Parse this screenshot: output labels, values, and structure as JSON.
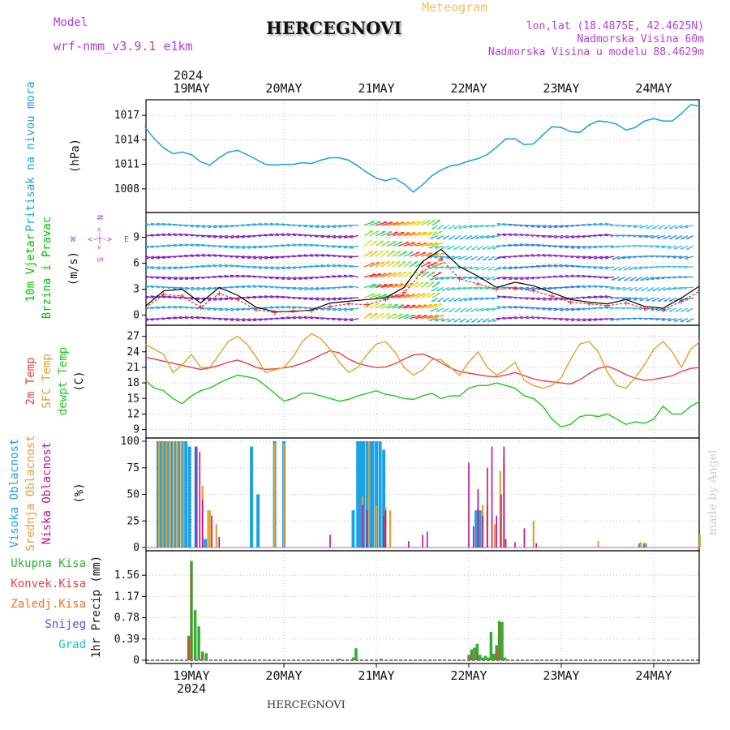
{
  "header": {
    "model_label": "Model",
    "model_name": "wrf-nmm_v3.9.1 e1km",
    "station": "HERCEGNOVI",
    "product": "Meteogram",
    "lonlat": "lon,lat (18.4875E, 42.4625N)",
    "altitude": "Nadmorska Visina 60m",
    "model_altitude": "Nadmorska Visina u modelu 88.4629m",
    "footer_station": "HERCEGNOVI",
    "watermark": "made by Angel"
  },
  "axis": {
    "year": "2024",
    "days": [
      "19MAY",
      "20MAY",
      "21MAY",
      "22MAY",
      "23MAY",
      "24MAY"
    ]
  },
  "colors": {
    "pressure": "#1ca0e6",
    "wind_label": "#00c000",
    "compass": "#b040d0",
    "temp2m": "#e84040",
    "sfc_temp": "#e0a030",
    "dewpoint": "#20c820",
    "cloud_high": "#1ca0e6",
    "cloud_mid": "#e0a030",
    "cloud_low": "#c0108c",
    "precip_total": "#30b030",
    "precip_conv": "#e04040",
    "precip_frozen": "#f07020",
    "snow": "#5050e0",
    "grad": "#20c0c0"
  },
  "chart_data": [
    {
      "type": "line",
      "panel": "pressure",
      "ylabel_main": "Pritisak na nivou mora",
      "unit": "(hPa)",
      "ylim": [
        1005.5,
        1018.5
      ],
      "yticks": [
        1008,
        1011,
        1014,
        1017
      ],
      "grid": true,
      "x_days": [
        -0.5,
        -0.4,
        -0.3,
        -0.2,
        -0.1,
        0.0,
        0.1,
        0.2,
        0.3,
        0.4,
        0.5,
        0.6,
        0.7,
        0.8,
        0.9,
        1.0,
        1.1,
        1.2,
        1.3,
        1.4,
        1.5,
        1.6,
        1.7,
        1.8,
        1.9,
        2.0,
        2.1,
        2.2,
        2.3,
        2.4,
        2.5,
        2.6,
        2.7,
        2.8,
        2.9,
        3.0,
        3.1,
        3.2,
        3.3,
        3.4,
        3.5,
        3.6,
        3.7,
        3.8,
        3.9,
        4.0,
        4.1,
        4.2,
        4.3,
        4.4,
        4.5,
        4.6,
        4.7,
        4.8,
        4.9,
        5.0,
        5.1,
        5.2,
        5.3,
        5.4,
        5.5
      ],
      "series": [
        {
          "values": [
            1015.5,
            1014.1,
            1013.0,
            1012.3,
            1012.5,
            1012.2,
            1011.3,
            1010.9,
            1011.8,
            1012.5,
            1012.7,
            1012.2,
            1011.6,
            1011.0,
            1010.9,
            1011.0,
            1011.0,
            1011.2,
            1011.1,
            1011.5,
            1011.8,
            1011.8,
            1011.5,
            1010.8,
            1010.0,
            1009.3,
            1009.0,
            1009.3,
            1008.6,
            1007.6,
            1008.5,
            1009.6,
            1010.3,
            1010.8,
            1011.0,
            1011.4,
            1011.7,
            1012.2,
            1013.1,
            1014.1,
            1014.1,
            1013.4,
            1013.5,
            1014.6,
            1015.6,
            1015.5,
            1015.0,
            1014.9,
            1015.8,
            1016.3,
            1016.2,
            1015.9,
            1015.2,
            1015.5,
            1016.3,
            1016.6,
            1016.3,
            1016.3,
            1017.2,
            1018.3,
            1018.1
          ]
        }
      ]
    },
    {
      "type": "line",
      "panel": "wind",
      "ylabel_main": "10m Vjetar",
      "ylabel_sub": "Brzina i Pravac",
      "unit": "(m/s)",
      "ylim": [
        -0.8,
        11.5
      ],
      "yticks": [
        0,
        3,
        6,
        9
      ],
      "grid": true,
      "compass": {
        "n": "N",
        "s": "S",
        "w": "W",
        "e": "E",
        "arrow": "<-|->"
      },
      "x_days": [
        -0.5,
        -0.3,
        -0.1,
        0.1,
        0.3,
        0.5,
        0.7,
        0.9,
        1.1,
        1.3,
        1.5,
        1.7,
        1.9,
        2.1,
        2.3,
        2.5,
        2.7,
        2.9,
        3.1,
        3.3,
        3.5,
        3.7,
        3.9,
        4.1,
        4.3,
        4.5,
        4.7,
        4.9,
        5.1,
        5.3,
        5.5
      ],
      "series": [
        {
          "name": "speed",
          "values": [
            1.0,
            2.8,
            3.0,
            1.4,
            3.2,
            2.3,
            0.9,
            0.4,
            0.4,
            0.6,
            1.4,
            1.6,
            1.8,
            2.0,
            3.2,
            6.2,
            7.6,
            5.6,
            4.5,
            3.2,
            3.8,
            3.4,
            2.6,
            1.8,
            1.5,
            1.3,
            1.8,
            1.0,
            0.8,
            2.0,
            3.4
          ]
        },
        {
          "name": "gust",
          "values": [
            0.8,
            2.4,
            2.2,
            0.9,
            2.5,
            1.8,
            0.6,
            0.3,
            0.5,
            0.5,
            1.0,
            1.3,
            1.2,
            1.8,
            2.6,
            5.0,
            6.5,
            4.2,
            3.6,
            3.0,
            3.1,
            2.8,
            2.2,
            1.5,
            1.3,
            1.1,
            1.4,
            0.8,
            0.6,
            1.6,
            2.8
          ]
        }
      ]
    },
    {
      "type": "line",
      "panel": "temperature",
      "ylabel_lines": [
        "2m Temp",
        "SFC Temp",
        "dewpt Temp"
      ],
      "unit": "(C)",
      "ylim": [
        8,
        28.5
      ],
      "yticks": [
        9,
        12,
        15,
        18,
        21,
        24,
        27
      ],
      "grid": true,
      "x_days": [
        -0.5,
        -0.4,
        -0.3,
        -0.2,
        -0.1,
        0.0,
        0.1,
        0.2,
        0.3,
        0.4,
        0.5,
        0.6,
        0.7,
        0.8,
        0.9,
        1.0,
        1.1,
        1.2,
        1.3,
        1.4,
        1.5,
        1.6,
        1.7,
        1.8,
        1.9,
        2.0,
        2.1,
        2.2,
        2.3,
        2.4,
        2.5,
        2.6,
        2.7,
        2.8,
        2.9,
        3.0,
        3.1,
        3.2,
        3.3,
        3.4,
        3.5,
        3.6,
        3.7,
        3.8,
        3.9,
        4.0,
        4.1,
        4.2,
        4.3,
        4.4,
        4.5,
        4.6,
        4.7,
        4.8,
        4.9,
        5.0,
        5.1,
        5.2,
        5.3,
        5.4,
        5.5
      ],
      "series": [
        {
          "name": "2m Temp",
          "values": [
            23.0,
            22.6,
            22.2,
            21.8,
            21.4,
            21.0,
            20.6,
            20.9,
            21.4,
            22.0,
            22.4,
            21.8,
            21.0,
            20.6,
            20.7,
            20.9,
            21.2,
            21.8,
            22.5,
            23.4,
            24.2,
            23.8,
            22.6,
            21.8,
            21.3,
            21.0,
            21.1,
            21.7,
            22.6,
            23.4,
            23.6,
            22.9,
            21.9,
            20.9,
            20.2,
            19.9,
            19.6,
            19.3,
            19.2,
            19.5,
            20.0,
            19.4,
            18.8,
            18.4,
            18.2,
            18.0,
            17.8,
            18.6,
            19.8,
            20.8,
            21.2,
            20.5,
            19.6,
            18.9,
            18.5,
            18.7,
            19.0,
            19.4,
            20.2,
            20.8,
            21.0
          ]
        },
        {
          "name": "SFC Temp",
          "values": [
            25.5,
            24.5,
            23.5,
            20.0,
            21.5,
            23.5,
            21.0,
            21.0,
            23.5,
            26.0,
            27.0,
            25.5,
            23.0,
            20.0,
            20.5,
            21.0,
            23.0,
            26.0,
            27.5,
            26.5,
            24.5,
            22.0,
            20.0,
            21.0,
            23.5,
            25.5,
            26.0,
            24.0,
            21.0,
            19.5,
            20.5,
            22.5,
            22.5,
            21.0,
            19.5,
            22.0,
            24.0,
            21.0,
            19.5,
            20.5,
            22.0,
            18.5,
            17.5,
            17.0,
            17.5,
            19.0,
            22.5,
            25.5,
            26.0,
            24.0,
            20.0,
            17.5,
            17.0,
            19.0,
            21.5,
            24.5,
            26.0,
            24.0,
            21.0,
            24.5,
            26.0
          ]
        },
        {
          "name": "dewpt Temp",
          "values": [
            18.5,
            17.0,
            16.5,
            15.0,
            14.0,
            15.5,
            16.5,
            17.0,
            18.0,
            18.8,
            19.5,
            19.2,
            18.8,
            17.5,
            16.0,
            14.5,
            15.0,
            16.0,
            16.0,
            15.5,
            15.0,
            14.5,
            14.8,
            15.5,
            16.0,
            16.5,
            15.8,
            15.5,
            15.0,
            14.8,
            15.5,
            16.0,
            15.0,
            15.5,
            15.5,
            17.0,
            17.5,
            17.5,
            18.0,
            17.5,
            17.0,
            15.5,
            15.0,
            13.5,
            11.0,
            9.5,
            10.0,
            11.5,
            11.8,
            11.5,
            12.0,
            11.0,
            10.0,
            10.5,
            10.2,
            11.0,
            13.5,
            12.0,
            12.0,
            13.5,
            14.5
          ]
        }
      ]
    },
    {
      "type": "bar",
      "panel": "clouds",
      "ylabel_lines": [
        "Visoka Oblacnost",
        "Srednja Oblacnost",
        "Niska Oblacnost"
      ],
      "unit": "(%)",
      "ylim": [
        0,
        100
      ],
      "yticks": [
        0,
        25,
        50,
        75,
        100
      ],
      "grid": true,
      "series": [
        {
          "name": "Visoka Oblacnost",
          "x_days": [
            -0.36,
            -0.33,
            -0.29,
            -0.26,
            -0.22,
            -0.18,
            -0.14,
            -0.1,
            -0.06,
            -0.02,
            0.05,
            0.15,
            0.65,
            0.72,
            0.9,
            1.0,
            1.75,
            1.8,
            1.83,
            1.86,
            1.9,
            1.93,
            1.96,
            2.0,
            2.04,
            2.08,
            3.08,
            3.12,
            4.85,
            4.9
          ],
          "values": [
            100,
            100,
            100,
            100,
            100,
            100,
            100,
            100,
            100,
            95,
            95,
            8,
            95,
            50,
            100,
            100,
            35,
            100,
            100,
            100,
            100,
            100,
            100,
            100,
            100,
            92,
            35,
            35,
            4,
            4
          ]
        },
        {
          "name": "Srednja Oblacnost",
          "x_days": [
            -0.35,
            -0.31,
            -0.27,
            -0.23,
            -0.19,
            -0.15,
            -0.11,
            0.12,
            0.18,
            0.2,
            0.27,
            0.9,
            1.0,
            1.85,
            1.92,
            2.0,
            2.1,
            2.15,
            3.1,
            3.15,
            3.2,
            3.28,
            3.34,
            3.38,
            3.7,
            4.4,
            4.86,
            4.92,
            5.5
          ],
          "values": [
            100,
            100,
            100,
            100,
            100,
            100,
            100,
            58,
            35,
            35,
            22,
            98,
            98,
            48,
            100,
            40,
            38,
            35,
            38,
            40,
            40,
            22,
            72,
            84,
            25,
            6,
            5,
            4,
            12
          ]
        },
        {
          "name": "Niska Oblacnost",
          "x_days": [
            0.05,
            0.09,
            0.12,
            0.22,
            0.3,
            1.5,
            1.85,
            1.9,
            2.08,
            2.1,
            2.35,
            2.5,
            2.55,
            3.0,
            3.05,
            3.1,
            3.15,
            3.2,
            3.25,
            3.3,
            3.35,
            3.38,
            3.4,
            3.5,
            3.6,
            3.73
          ],
          "values": [
            95,
            90,
            45,
            30,
            10,
            12,
            40,
            35,
            30,
            35,
            6,
            12,
            15,
            80,
            20,
            55,
            30,
            75,
            95,
            30,
            50,
            95,
            8,
            5,
            18,
            4
          ]
        }
      ]
    },
    {
      "type": "bar",
      "panel": "precipitation",
      "legend": [
        "Ukupna Kisa",
        "Konvek.Kisa",
        "Zaledj.Kisa",
        "Snijeg",
        "Grad"
      ],
      "unit": "1hr Precip (mm)",
      "ylim": [
        0,
        1.95
      ],
      "yticks": [
        0,
        0.39,
        0.78,
        1.17,
        1.56
      ],
      "grid": true,
      "series": [
        {
          "name": "Ukupna Kisa",
          "x_days": [
            -0.03,
            0.0,
            0.04,
            0.08,
            0.12,
            0.16,
            1.6,
            1.75,
            1.78,
            2.05,
            3.0,
            3.03,
            3.06,
            3.09,
            3.12,
            3.15,
            3.18,
            3.21,
            3.24,
            3.27,
            3.3,
            3.33,
            3.36,
            3.39
          ],
          "values": [
            0.45,
            1.82,
            0.92,
            0.62,
            0.16,
            0.13,
            0.03,
            0.05,
            0.22,
            0.03,
            0.1,
            0.2,
            0.23,
            0.3,
            0.1,
            0.05,
            0.08,
            0.05,
            0.52,
            0.12,
            0.28,
            0.72,
            0.7,
            0.05
          ]
        },
        {
          "name": "Konvek.Kisa",
          "x_days": [
            -0.03,
            0.0,
            0.04,
            0.12,
            3.0,
            3.03,
            3.09,
            3.3,
            3.33
          ],
          "values": [
            0.4,
            1.75,
            0.08,
            0.1,
            0.08,
            0.15,
            0.15,
            0.2,
            0.68
          ]
        }
      ]
    }
  ]
}
